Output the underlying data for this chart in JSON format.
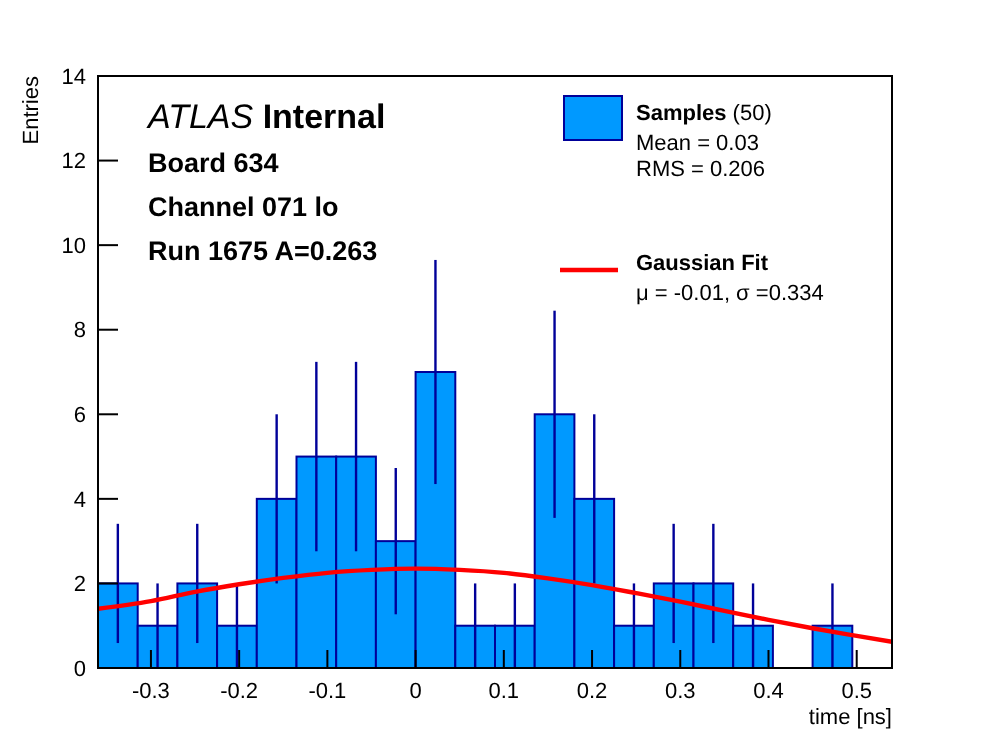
{
  "chart_data": {
    "type": "histogram",
    "xlabel": "time [ns]",
    "ylabel": "Entries",
    "bins": [
      -0.36,
      -0.315,
      -0.27,
      -0.225,
      -0.18,
      -0.135,
      -0.09,
      -0.045,
      0,
      0.045,
      0.09,
      0.135,
      0.18,
      0.225,
      0.27,
      0.315,
      0.36,
      0.405,
      0.45,
      0.495,
      0.54
    ],
    "xlim": [
      -0.36,
      0.54
    ],
    "xticks": [
      -0.3,
      -0.2,
      -0.1,
      0,
      0.1,
      0.2,
      0.3,
      0.4,
      0.5
    ],
    "ylim": [
      0,
      14
    ],
    "yticks": [
      0,
      2,
      4,
      6,
      8,
      10,
      12,
      14
    ],
    "legend": "top right",
    "series": [
      {
        "name": "Samples (50)",
        "color": "#0099ff",
        "values": [
          2,
          1,
          2,
          1,
          4,
          5,
          5,
          3,
          7,
          1,
          1,
          6,
          4,
          1,
          2,
          2,
          1,
          0,
          1,
          0
        ],
        "errors": [
          1.41,
          1,
          1.41,
          1,
          2,
          2.24,
          2.24,
          1.73,
          2.65,
          1,
          1,
          2.45,
          2,
          1,
          1.41,
          1.41,
          1,
          0,
          1,
          0
        ]
      },
      {
        "name": "Gaussian Fit",
        "type": "line",
        "color": "#ff0000",
        "x": [
          -0.36,
          -0.3,
          -0.25,
          -0.2,
          -0.15,
          -0.1,
          -0.05,
          0,
          0.05,
          0.1,
          0.15,
          0.2,
          0.25,
          0.3,
          0.35,
          0.4,
          0.45,
          0.5,
          0.54
        ],
        "values": [
          1.4,
          1.58,
          1.8,
          1.98,
          2.13,
          2.25,
          2.32,
          2.35,
          2.32,
          2.25,
          2.12,
          1.96,
          1.77,
          1.57,
          1.35,
          1.14,
          0.94,
          0.76,
          0.62
        ]
      }
    ],
    "annotations": [
      "ATLAS Internal",
      "Board 634",
      "Channel 071 lo",
      "Run 1675 A=0.263",
      "Mean = 0.03",
      "RMS = 0.206",
      "μ = -0.01, σ =0.334"
    ]
  }
}
